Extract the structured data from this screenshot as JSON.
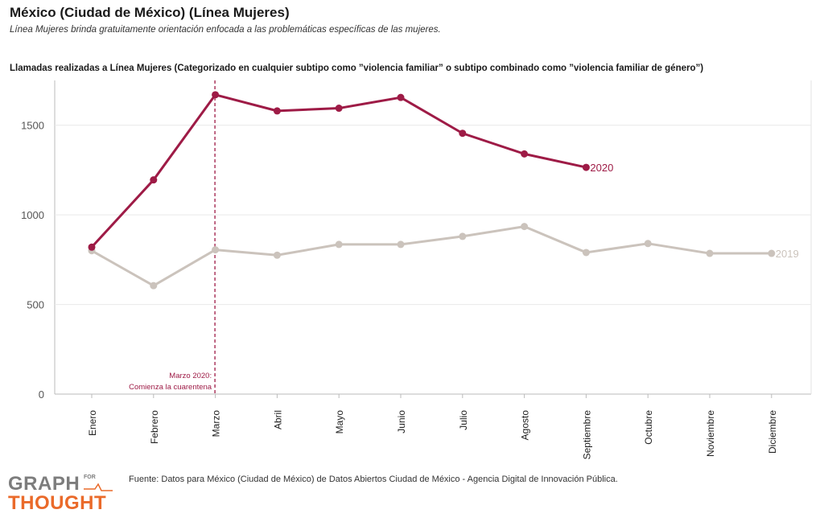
{
  "header": {
    "title": "México (Ciudad de México) (Línea Mujeres)",
    "subtitle": "Línea Mujeres brinda gratuitamente orientación enfocada a las problemáticas específicas de las mujeres.",
    "chart_title": "Llamadas realizadas a Línea Mujeres (Categorizado en cualquier subtipo como ”violencia familiar” o subtipo combinado como ”violencia familiar de género”)"
  },
  "footer": {
    "source_label": "Fuente:",
    "source_text": " Datos para México (Ciudad de México) de Datos Abiertos Ciudad de México - Agencia Digital de Innovación Pública.",
    "logo_line1": "GRAPH",
    "logo_for": "FOR",
    "logo_line2": "THOUGHT"
  },
  "colors": {
    "series_2020": "#9e1b46",
    "series_2019": "#cbc3bc",
    "grid": "#e9e9e9",
    "axis": "#bbbbbb",
    "annotation": "#9e1b46",
    "logo_gray": "#7d7d7d",
    "logo_orange": "#ea6a2a"
  },
  "chart_data": {
    "type": "line",
    "title": "Llamadas realizadas a Línea Mujeres (Categorizado en cualquier subtipo como ”violencia familiar” o subtipo combinado como ”violencia familiar de género”)",
    "xlabel": "",
    "ylabel": "",
    "categories": [
      "Enero",
      "Febrero",
      "Marzo",
      "Abril",
      "Mayo",
      "Junio",
      "Julio",
      "Agosto",
      "Septiembre",
      "Octubre",
      "Noviembre",
      "Diciembre"
    ],
    "yticks": [
      0,
      500,
      1000,
      1500
    ],
    "ylim": [
      0,
      1750
    ],
    "grid": true,
    "series": [
      {
        "name": "2019",
        "values": [
          800,
          605,
          805,
          775,
          835,
          835,
          880,
          935,
          790,
          840,
          785,
          785
        ]
      },
      {
        "name": "2020",
        "values": [
          820,
          1195,
          1670,
          1580,
          1595,
          1655,
          1455,
          1340,
          1265,
          null,
          null,
          null
        ]
      }
    ],
    "annotation": {
      "category": "Marzo",
      "line1": "Marzo 2020:",
      "line2": "Comienza la cuarentena"
    }
  }
}
